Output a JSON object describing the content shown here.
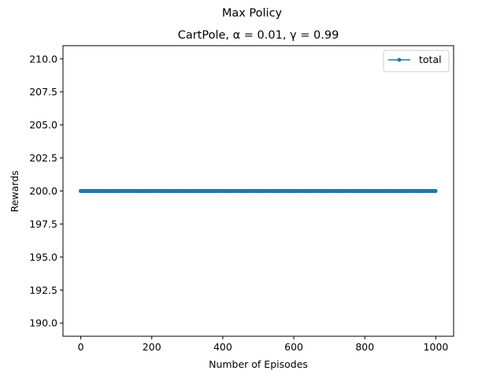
{
  "figure": {
    "suptitle": "Max Policy"
  },
  "chart_data": {
    "type": "line",
    "title": "CartPole, α = 0.01, γ = 0.99",
    "xlabel": "Number of Episodes",
    "ylabel": "Rewards",
    "xlim": [
      -50,
      1050
    ],
    "ylim": [
      189,
      211
    ],
    "xticks": [
      "0",
      "200",
      "400",
      "600",
      "800",
      "1000"
    ],
    "xtick_values": [
      0,
      200,
      400,
      600,
      800,
      1000
    ],
    "yticks": [
      "190.0",
      "192.5",
      "195.0",
      "197.5",
      "200.0",
      "202.5",
      "205.0",
      "207.5",
      "210.0"
    ],
    "ytick_values": [
      190.0,
      192.5,
      195.0,
      197.5,
      200.0,
      202.5,
      205.0,
      207.5,
      210.0
    ],
    "legend_position": "top-right",
    "grid": false,
    "series": [
      {
        "name": "total",
        "color": "#1f77b4",
        "marker": "circle",
        "x_start": 0,
        "x_end": 999,
        "x_step": 5,
        "constant_value": 200.0
      }
    ]
  }
}
